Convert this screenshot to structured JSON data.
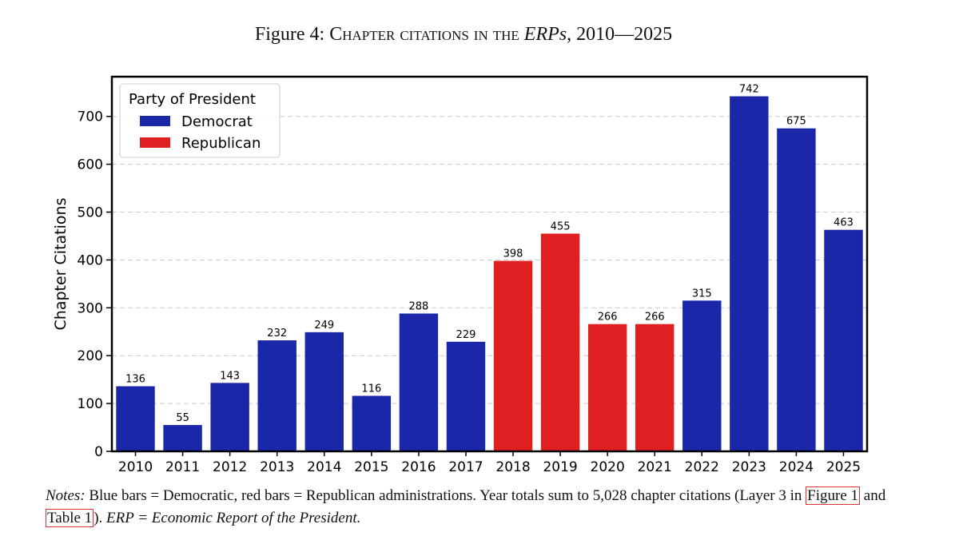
{
  "title": {
    "prefix": "Figure 4: ",
    "smallcaps": "Chapter citations in the",
    "italic": "ERPs",
    "suffix": ", 2010—2025"
  },
  "notes": {
    "label": "Notes:",
    "text1": " Blue bars = Democratic, red bars = Republican administrations.  Year totals sum to 5,028 chapter citations (Layer 3 in ",
    "ref1": "Figure 1",
    "text2": " and ",
    "ref2": "Table 1",
    "text3": "). ",
    "italic": "ERP = Economic Report of the President."
  },
  "chart_data": {
    "type": "bar",
    "title": "",
    "xlabel": "",
    "ylabel": "Chapter Citations",
    "categories": [
      "2010",
      "2011",
      "2012",
      "2013",
      "2014",
      "2015",
      "2016",
      "2017",
      "2018",
      "2019",
      "2020",
      "2021",
      "2022",
      "2023",
      "2024",
      "2025"
    ],
    "values": [
      136,
      55,
      143,
      232,
      249,
      116,
      288,
      229,
      398,
      455,
      266,
      266,
      315,
      742,
      675,
      463
    ],
    "party": [
      "Democrat",
      "Democrat",
      "Democrat",
      "Democrat",
      "Democrat",
      "Democrat",
      "Democrat",
      "Democrat",
      "Republican",
      "Republican",
      "Republican",
      "Republican",
      "Democrat",
      "Democrat",
      "Democrat",
      "Democrat"
    ],
    "ylim": [
      0,
      783
    ],
    "yticks": [
      0,
      100,
      200,
      300,
      400,
      500,
      600,
      700
    ],
    "grid": "horizontal dashed",
    "legend": {
      "title": "Party of President",
      "placement": "top-left",
      "entries": [
        {
          "name": "Democrat",
          "color": "#1a27a8"
        },
        {
          "name": "Republican",
          "color": "#e02020"
        }
      ]
    },
    "colors": {
      "Democrat": "#1a27a8",
      "Republican": "#e02020"
    }
  }
}
